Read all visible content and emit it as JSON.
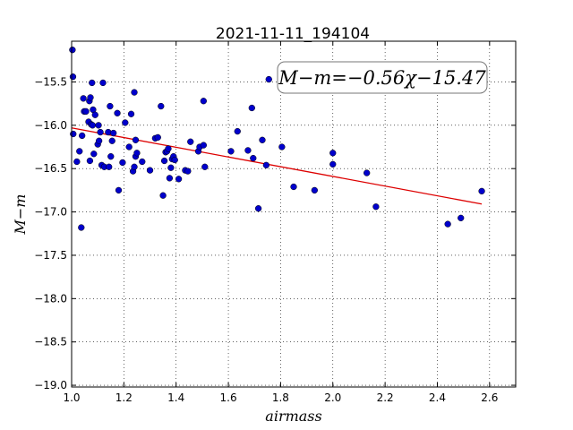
{
  "chart_data": {
    "type": "scatter",
    "title": "2021-11-11_194104",
    "xlabel": "airmass",
    "ylabel": "M−m",
    "xlim": [
      1.0,
      2.7
    ],
    "ylim": [
      -19.02,
      -15.03
    ],
    "xticks": [
      1.0,
      1.2,
      1.4,
      1.6,
      1.8,
      2.0,
      2.2,
      2.4,
      2.6
    ],
    "xtick_labels": [
      "1.0",
      "1.2",
      "1.4",
      "1.6",
      "1.8",
      "2.0",
      "2.2",
      "2.4",
      "2.6"
    ],
    "yticks": [
      -15.5,
      -16.0,
      -16.5,
      -17.0,
      -17.5,
      -18.0,
      -18.5,
      -19.0
    ],
    "ytick_labels": [
      "−15.5",
      "−16.0",
      "−16.5",
      "−17.0",
      "−17.5",
      "−18.0",
      "−18.5",
      "−19.0"
    ],
    "grid": true,
    "annotation": "M−m=−0.56χ−15.47",
    "point_color": "#0000cc",
    "fit_color": "#dd0000",
    "fit": {
      "slope": -0.56,
      "intercept": -15.47,
      "x_range": [
        1.0,
        2.57
      ]
    },
    "points": [
      [
        1.003,
        -15.13
      ],
      [
        1.005,
        -15.44
      ],
      [
        1.006,
        -16.1
      ],
      [
        1.02,
        -16.42
      ],
      [
        1.03,
        -16.3
      ],
      [
        1.037,
        -17.18
      ],
      [
        1.04,
        -16.12
      ],
      [
        1.045,
        -15.69
      ],
      [
        1.048,
        -15.84
      ],
      [
        1.055,
        -15.84
      ],
      [
        1.065,
        -15.96
      ],
      [
        1.068,
        -15.72
      ],
      [
        1.07,
        -16.41
      ],
      [
        1.072,
        -15.68
      ],
      [
        1.075,
        -15.99
      ],
      [
        1.078,
        -15.51
      ],
      [
        1.08,
        -16.0
      ],
      [
        1.082,
        -15.82
      ],
      [
        1.085,
        -16.33
      ],
      [
        1.09,
        -15.88
      ],
      [
        1.1,
        -16.22
      ],
      [
        1.103,
        -16.0
      ],
      [
        1.105,
        -16.18
      ],
      [
        1.11,
        -16.08
      ],
      [
        1.115,
        -16.46
      ],
      [
        1.12,
        -15.51
      ],
      [
        1.125,
        -16.48
      ],
      [
        1.14,
        -16.08
      ],
      [
        1.143,
        -16.48
      ],
      [
        1.147,
        -15.78
      ],
      [
        1.15,
        -16.36
      ],
      [
        1.155,
        -16.18
      ],
      [
        1.16,
        -16.09
      ],
      [
        1.175,
        -15.86
      ],
      [
        1.18,
        -16.75
      ],
      [
        1.195,
        -16.43
      ],
      [
        1.205,
        -15.97
      ],
      [
        1.22,
        -16.25
      ],
      [
        1.228,
        -15.87
      ],
      [
        1.235,
        -16.53
      ],
      [
        1.24,
        -16.48
      ],
      [
        1.24,
        -15.62
      ],
      [
        1.245,
        -16.17
      ],
      [
        1.245,
        -16.36
      ],
      [
        1.25,
        -16.32
      ],
      [
        1.27,
        -16.42
      ],
      [
        1.3,
        -16.52
      ],
      [
        1.32,
        -16.15
      ],
      [
        1.33,
        -16.14
      ],
      [
        1.342,
        -15.78
      ],
      [
        1.35,
        -16.81
      ],
      [
        1.355,
        -16.41
      ],
      [
        1.36,
        -16.31
      ],
      [
        1.365,
        -16.3
      ],
      [
        1.37,
        -16.27
      ],
      [
        1.375,
        -16.61
      ],
      [
        1.38,
        -16.49
      ],
      [
        1.385,
        -16.39
      ],
      [
        1.39,
        -16.36
      ],
      [
        1.395,
        -16.4
      ],
      [
        1.41,
        -16.62
      ],
      [
        1.435,
        -16.52
      ],
      [
        1.445,
        -16.53
      ],
      [
        1.455,
        -16.19
      ],
      [
        1.485,
        -16.3
      ],
      [
        1.49,
        -16.25
      ],
      [
        1.505,
        -16.23
      ],
      [
        1.505,
        -15.72
      ],
      [
        1.51,
        -16.48
      ],
      [
        1.61,
        -16.3
      ],
      [
        1.635,
        -16.07
      ],
      [
        1.675,
        -16.29
      ],
      [
        1.69,
        -15.8
      ],
      [
        1.695,
        -16.38
      ],
      [
        1.715,
        -16.96
      ],
      [
        1.73,
        -16.17
      ],
      [
        1.745,
        -16.46
      ],
      [
        1.755,
        -15.47
      ],
      [
        1.805,
        -16.25
      ],
      [
        1.85,
        -16.71
      ],
      [
        1.93,
        -16.75
      ],
      [
        2.0,
        -16.45
      ],
      [
        2.0,
        -16.32
      ],
      [
        2.13,
        -16.55
      ],
      [
        2.165,
        -16.94
      ],
      [
        2.44,
        -17.14
      ],
      [
        2.49,
        -17.07
      ],
      [
        2.57,
        -16.76
      ]
    ]
  }
}
